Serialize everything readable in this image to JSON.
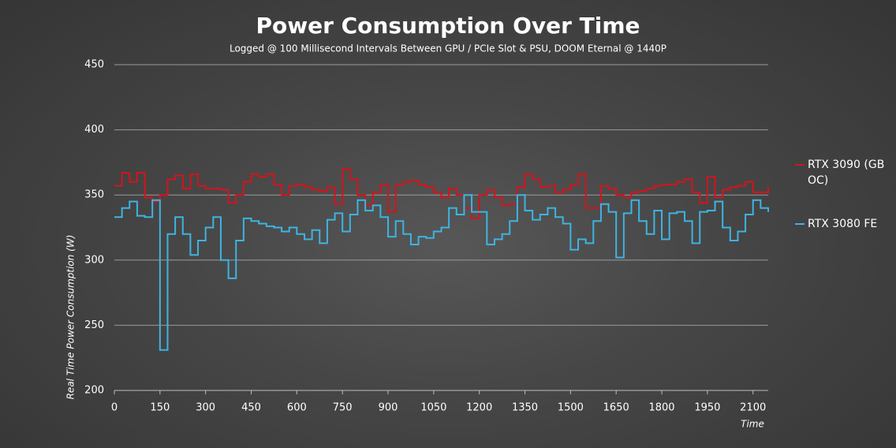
{
  "chart_data": {
    "type": "step",
    "title": "Power Consumption Over Time",
    "subtitle": "Logged @ 100 Millisecond Intervals Between GPU / PCIe Slot & PSU, DOOM Eternal @ 1440P",
    "y_label": "Real Time Power Consumption (W)",
    "x_label": "Time",
    "x": [
      0,
      25,
      50,
      75,
      100,
      125,
      150,
      175,
      200,
      225,
      250,
      275,
      300,
      325,
      350,
      375,
      400,
      425,
      450,
      475,
      500,
      525,
      550,
      575,
      600,
      625,
      650,
      675,
      700,
      725,
      750,
      775,
      800,
      825,
      850,
      875,
      900,
      925,
      950,
      975,
      1000,
      1025,
      1050,
      1075,
      1100,
      1125,
      1150,
      1175,
      1200,
      1225,
      1250,
      1275,
      1300,
      1325,
      1350,
      1375,
      1400,
      1425,
      1450,
      1475,
      1500,
      1525,
      1550,
      1575,
      1600,
      1625,
      1650,
      1675,
      1700,
      1725,
      1750,
      1775,
      1800,
      1825,
      1850,
      1875,
      1900,
      1925,
      1950,
      1975,
      2000,
      2025,
      2050,
      2075,
      2100,
      2125,
      2150
    ],
    "series": [
      {
        "name": "RTX 3090 (GB OC)",
        "color": "#d3141c",
        "values": [
          357,
          367,
          360,
          367,
          348,
          345,
          350,
          362,
          365,
          355,
          366,
          357,
          355,
          355,
          354,
          344,
          350,
          360,
          366,
          364,
          366,
          358,
          350,
          357,
          358,
          356,
          354,
          353,
          356,
          343,
          370,
          362,
          350,
          342,
          352,
          358,
          337,
          358,
          360,
          361,
          358,
          356,
          352,
          348,
          355,
          350,
          340,
          332,
          350,
          354,
          348,
          342,
          343,
          356,
          366,
          362,
          356,
          357,
          352,
          354,
          358,
          366,
          340,
          340,
          357,
          355,
          350,
          348,
          352,
          353,
          355,
          357,
          358,
          358,
          360,
          362,
          352,
          344,
          364,
          348,
          354,
          356,
          357,
          360,
          352,
          352,
          356
        ]
      },
      {
        "name": "RTX 3080 FE",
        "color": "#3db4e2",
        "values": [
          333,
          340,
          345,
          334,
          333,
          346,
          231,
          320,
          333,
          320,
          304,
          315,
          325,
          333,
          300,
          286,
          315,
          332,
          330,
          328,
          326,
          325,
          322,
          325,
          320,
          316,
          323,
          313,
          331,
          336,
          322,
          335,
          346,
          338,
          342,
          333,
          318,
          330,
          320,
          312,
          318,
          317,
          322,
          325,
          340,
          335,
          350,
          337,
          337,
          312,
          316,
          320,
          330,
          350,
          338,
          331,
          335,
          340,
          333,
          328,
          308,
          316,
          313,
          330,
          343,
          337,
          302,
          336,
          346,
          330,
          320,
          338,
          316,
          336,
          337,
          330,
          313,
          337,
          338,
          345,
          325,
          315,
          322,
          335,
          346,
          340,
          337
        ]
      }
    ],
    "xlim": [
      0,
      2150
    ],
    "ylim": [
      200,
      450
    ],
    "xticks": [
      0,
      150,
      300,
      450,
      600,
      750,
      900,
      1050,
      1200,
      1350,
      1500,
      1650,
      1800,
      1950,
      2100
    ],
    "yticks": [
      200,
      250,
      300,
      350,
      400,
      450
    ],
    "grid": true,
    "legend": "right"
  }
}
